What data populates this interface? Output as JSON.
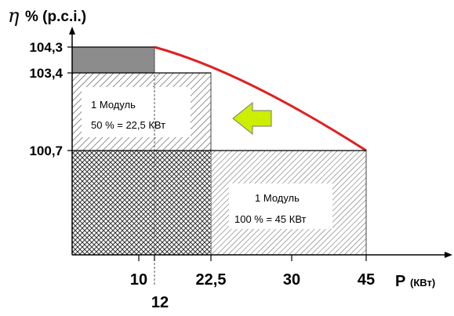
{
  "chart_data": {
    "type": "area",
    "title": "",
    "ylabel_symbol": "η",
    "ylabel_text": "% (p.c.i.)",
    "xlabel_main": "P",
    "xlabel_unit": "(КВт)",
    "x_ticks": [
      {
        "value": 10,
        "label": "10"
      },
      {
        "value": 12,
        "label": "12"
      },
      {
        "value": 22.5,
        "label": "22,5"
      },
      {
        "value": 30,
        "label": "30"
      },
      {
        "value": 45,
        "label": "45"
      }
    ],
    "y_ticks": [
      {
        "value": 100.7,
        "label": "100,7"
      },
      {
        "value": 103.4,
        "label": "103,4"
      },
      {
        "value": 104.3,
        "label": "104,3"
      }
    ],
    "curve": {
      "color": "#e02020",
      "points": [
        [
          12,
          104.3
        ],
        [
          22.5,
          103.4
        ],
        [
          45,
          100.7
        ]
      ]
    },
    "boxes": [
      {
        "name": "box-full-load",
        "x0": 0,
        "x1": 45,
        "y0": 0,
        "y1": 100.7,
        "pattern": "hatch"
      },
      {
        "name": "box-half-load",
        "x0": 0,
        "x1": 22.5,
        "y0": 0,
        "y1": 103.4,
        "pattern": "crosshatch"
      },
      {
        "name": "box-peak",
        "x0": 0,
        "x1": 12,
        "y0": 103.4,
        "y1": 104.3,
        "pattern": "gray"
      }
    ],
    "labels": {
      "half_line1": "1 Модуль",
      "half_line2": "50 % = 22,5 КВт",
      "full_line1": "1 Модуль",
      "full_line2": "100 % = 45 КВт"
    },
    "arrow_color": "#ccee00"
  }
}
